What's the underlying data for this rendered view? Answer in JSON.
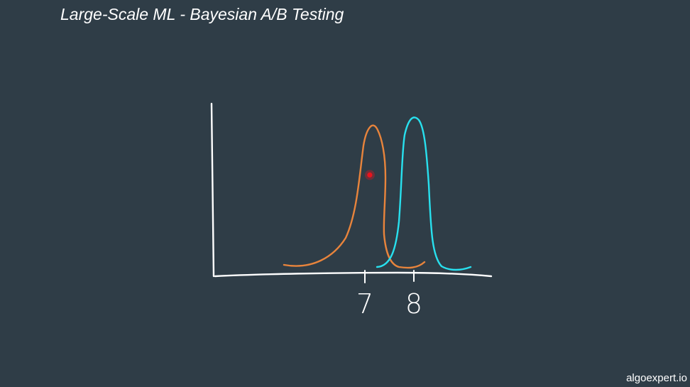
{
  "slide": {
    "title": "Large-Scale ML - Bayesian A/B Testing",
    "watermark": "algoexpert.io"
  },
  "chart_data": {
    "type": "line",
    "title": "",
    "xlabel": "",
    "ylabel": "",
    "grid": false,
    "x_ticks": [
      {
        "value": 7,
        "label": "7"
      },
      {
        "value": 8,
        "label": "8"
      }
    ],
    "series": [
      {
        "color": "#e8843c",
        "peak_x": 7,
        "shape": "left-skewed bell"
      },
      {
        "color": "#28e0ee",
        "peak_x": 8,
        "shape": "narrow bell"
      }
    ],
    "marker": {
      "color": "#e8141e",
      "x": 7.1,
      "y": 0.63
    }
  },
  "colors": {
    "background": "#2f3d47",
    "axes": "#ffffff",
    "text": "#ffffff"
  }
}
